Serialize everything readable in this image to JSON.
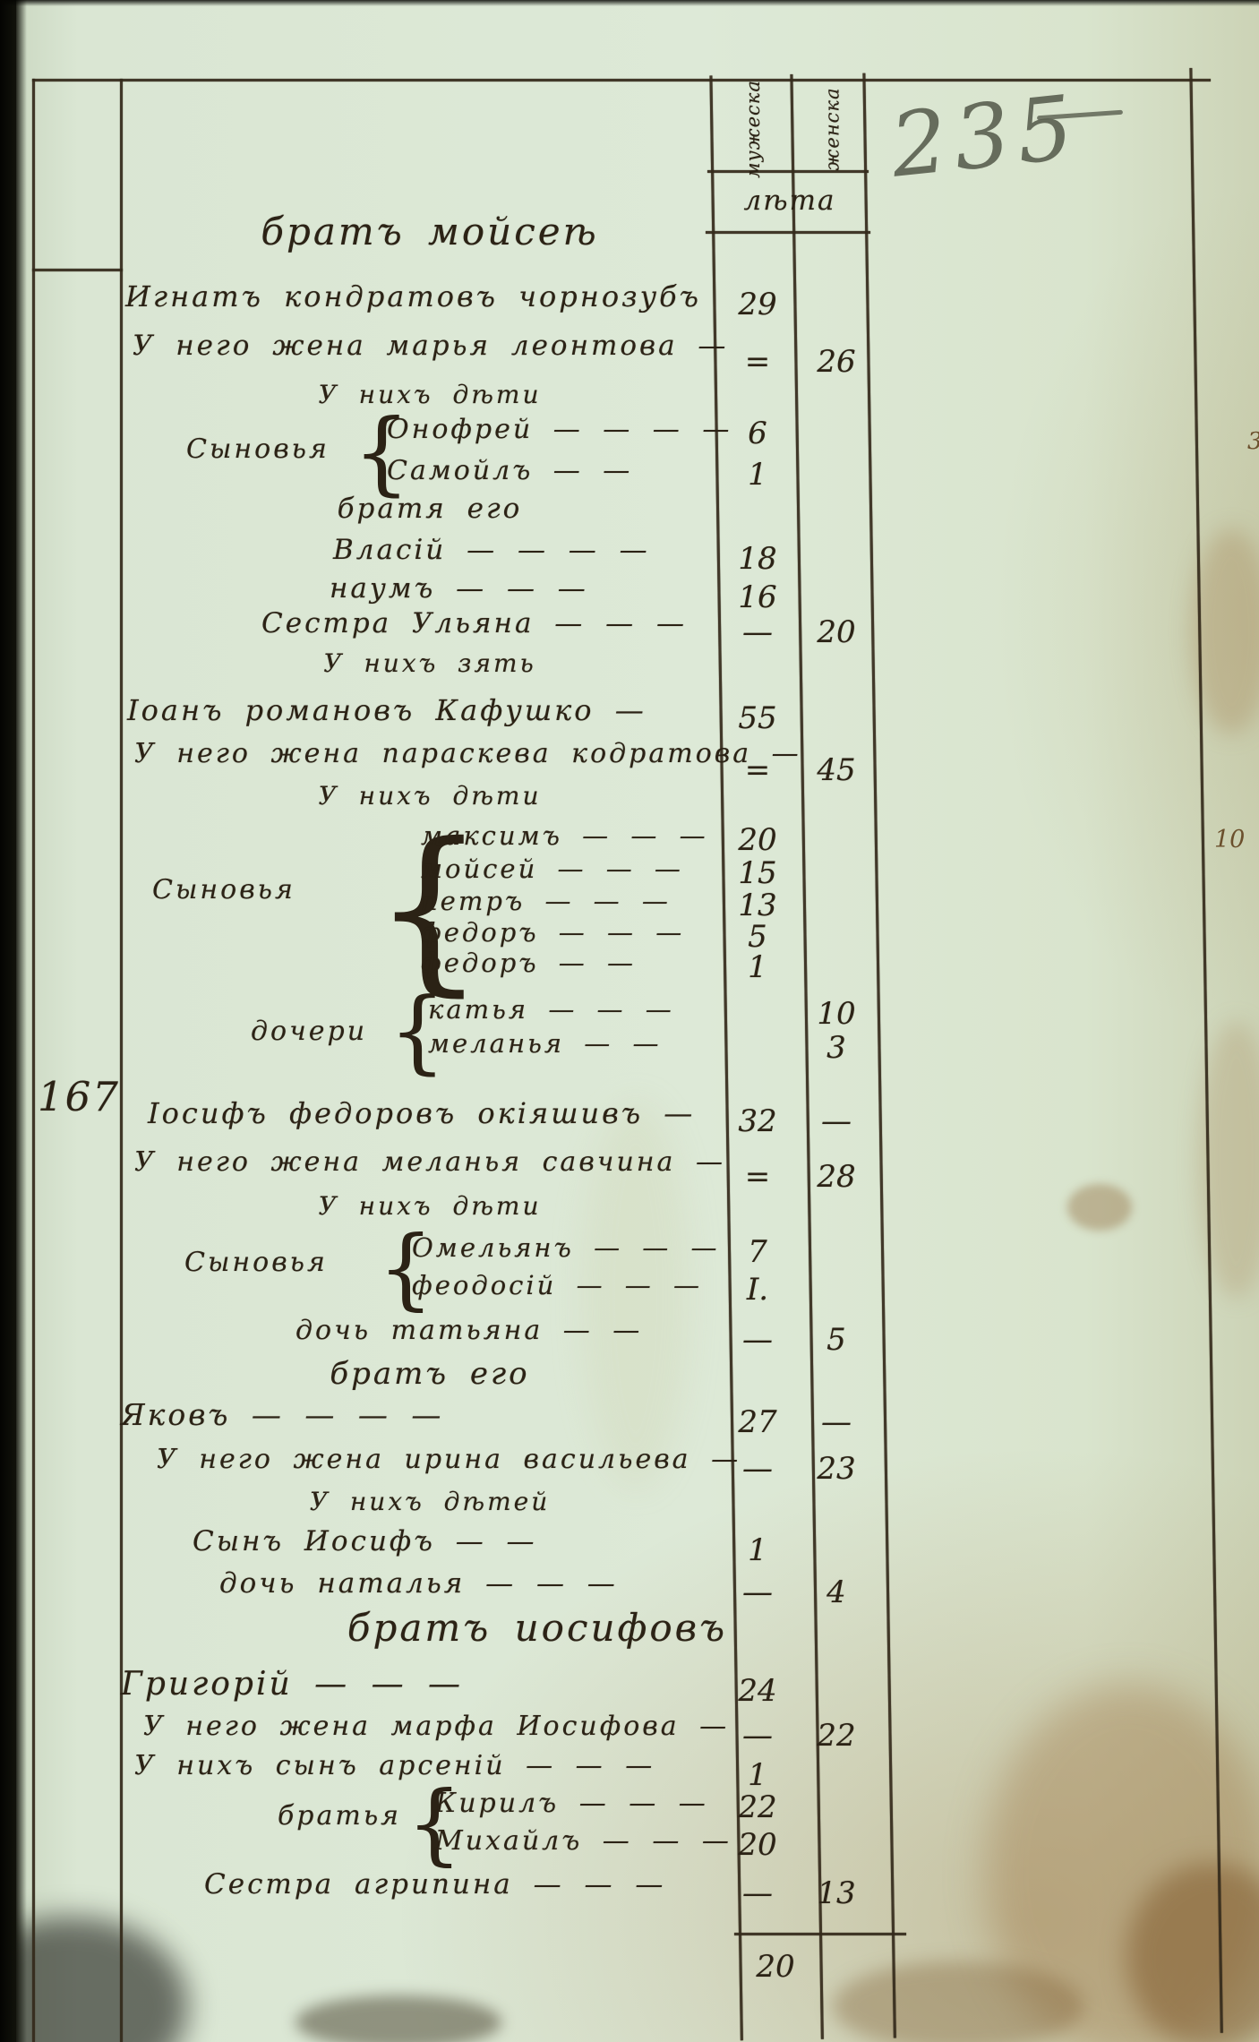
{
  "page": {
    "pencil_page_number": "235",
    "household_number": "167",
    "right_margin_note": "10",
    "right_margin_note_small": "3",
    "column_total_male": "20"
  },
  "table_header": {
    "male_column": "мужеска",
    "female_column": "женска",
    "years_label": "лѣта"
  },
  "entries": [
    {
      "kind": "heading",
      "text": "братъ мойсеѣ"
    },
    {
      "kind": "row",
      "text": "Игнатъ кондратовъ чорнозубъ",
      "male": "29",
      "female": ""
    },
    {
      "kind": "row",
      "text": "У него жена марья леонтова —",
      "male": "=",
      "female": "26"
    },
    {
      "kind": "center",
      "text": "У нихъ дѣти"
    },
    {
      "kind": "group",
      "label": "Сыновья",
      "members": [
        {
          "text": "Онофрей — — — —",
          "male": "6",
          "female": ""
        },
        {
          "text": "Самойлъ — —",
          "male": "1",
          "female": ""
        }
      ]
    },
    {
      "kind": "center",
      "text": "братя его"
    },
    {
      "kind": "row",
      "text": "Власій — — — —",
      "male": "18",
      "female": ""
    },
    {
      "kind": "row",
      "text": "наумъ — — —",
      "male": "16",
      "female": ""
    },
    {
      "kind": "row",
      "text": "Сестра Ульяна — — —",
      "male": "—",
      "female": "20"
    },
    {
      "kind": "center",
      "text": "У нихъ зять"
    },
    {
      "kind": "row",
      "text": "Іоанъ романовъ Кафушко —",
      "male": "55",
      "female": ""
    },
    {
      "kind": "row",
      "text": "У него жена параскева кодратова —",
      "male": "=",
      "female": "45"
    },
    {
      "kind": "center",
      "text": "У нихъ дѣти"
    },
    {
      "kind": "group",
      "label": "Сыновья",
      "members": [
        {
          "text": "максимъ — — —",
          "male": "20",
          "female": ""
        },
        {
          "text": "мойсей — — —",
          "male": "15",
          "female": ""
        },
        {
          "text": "петръ — — —",
          "male": "13",
          "female": ""
        },
        {
          "text": "федоръ — — —",
          "male": "5",
          "female": ""
        },
        {
          "text": "федоръ — —",
          "male": "1",
          "female": ""
        }
      ]
    },
    {
      "kind": "group",
      "label": "дочери",
      "members": [
        {
          "text": "катья — — —",
          "male": "",
          "female": "10"
        },
        {
          "text": "меланья — —",
          "male": "",
          "female": "3"
        }
      ]
    },
    {
      "kind": "row",
      "text": "Іосифъ федоровъ окіяшивъ —",
      "male": "32",
      "female": "—",
      "margin": "167"
    },
    {
      "kind": "row",
      "text": "У него жена меланья савчина —",
      "male": "=",
      "female": "28"
    },
    {
      "kind": "center",
      "text": "У нихъ дѣти"
    },
    {
      "kind": "group",
      "label": "Сыновья",
      "members": [
        {
          "text": "Омельянъ — — —",
          "male": "7",
          "female": ""
        },
        {
          "text": "феодосій — — —",
          "male": "I.",
          "female": ""
        }
      ]
    },
    {
      "kind": "row",
      "text": "дочь татьяна — —",
      "male": "—",
      "female": "5"
    },
    {
      "kind": "center",
      "text": "братъ его"
    },
    {
      "kind": "row",
      "text": "Яковъ — — — —",
      "male": "27",
      "female": "—"
    },
    {
      "kind": "row",
      "text": "У него жена ирина васильева —",
      "male": "—",
      "female": "23"
    },
    {
      "kind": "center",
      "text": "У нихъ дѣтей"
    },
    {
      "kind": "row",
      "text": "Сынъ Иосифъ — —",
      "male": "1",
      "female": ""
    },
    {
      "kind": "row",
      "text": "дочь наталья — — —",
      "male": "—",
      "female": "4"
    },
    {
      "kind": "heading",
      "text": "братъ иосифовъ"
    },
    {
      "kind": "row",
      "text": "Григорій — — —",
      "male": "24",
      "female": ""
    },
    {
      "kind": "row",
      "text": "У него жена марфа Иосифова —",
      "male": "—",
      "female": "22"
    },
    {
      "kind": "row",
      "text": "У нихъ сынъ арсеній — — —",
      "male": "1",
      "female": ""
    },
    {
      "kind": "group",
      "label": "братья",
      "members": [
        {
          "text": "Кирилъ — — —",
          "male": "22",
          "female": ""
        },
        {
          "text": "Михайлъ — — —",
          "male": "20",
          "female": ""
        }
      ]
    },
    {
      "kind": "row",
      "text": "Сестра агрипина — — —",
      "male": "—",
      "female": "13"
    }
  ]
}
